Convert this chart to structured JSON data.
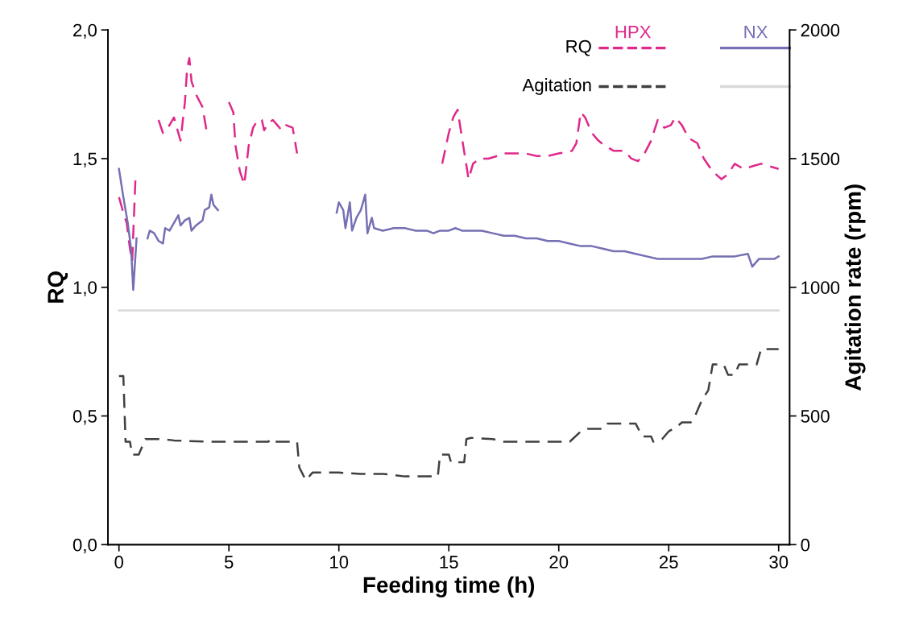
{
  "chart_data": {
    "type": "line",
    "xlabel": "Feeding time (h)",
    "ylabel": "RQ",
    "y2label": "Agitation rate (rpm)",
    "xlim": [
      -0.5,
      30.5
    ],
    "xticks": [
      0,
      5,
      10,
      15,
      20,
      25,
      30
    ],
    "ylim": [
      0,
      2
    ],
    "yticks": [
      {
        "value": 0,
        "label": "0,0"
      },
      {
        "value": 0.5,
        "label": "0,5"
      },
      {
        "value": 1,
        "label": "1,0"
      },
      {
        "value": 1.5,
        "label": "1,5"
      },
      {
        "value": 2,
        "label": "2,0"
      }
    ],
    "y2lim": [
      0,
      2000
    ],
    "y2ticks": [
      0,
      500,
      1000,
      1500,
      2000
    ],
    "legend": "top right",
    "grid": false,
    "marker": "none",
    "annotations": [
      "RQ",
      "Agitation"
    ],
    "series": [
      {
        "name": "HPX",
        "color": "#e0288a",
        "line_style": "dashed",
        "x": [
          0,
          0.2,
          0.35,
          0.5,
          0.6,
          0.75,
          0.76,
          1.8,
          2.0,
          2.3,
          2.5,
          2.8,
          3.0,
          3.1,
          3.2,
          3.3,
          3.5,
          3.8,
          4.0,
          4.5,
          5.0,
          5.2,
          5.3,
          5.5,
          5.7,
          5.9,
          6.1,
          6.3,
          6.5,
          6.6,
          6.8,
          7.0,
          7.2,
          7.4,
          7.6,
          7.9,
          8.1,
          10,
          14.7,
          15.0,
          15.2,
          15.4,
          15.6,
          15.9,
          16.1,
          16.4,
          16.8,
          17.2,
          17.5,
          18,
          18.5,
          19,
          19.5,
          20,
          20.6,
          20.8,
          21.0,
          21.2,
          21.5,
          21.8,
          22.1,
          22.5,
          23.0,
          23.3,
          23.6,
          23.9,
          24.2,
          24.5,
          24.8,
          25.1,
          25.3,
          25.6,
          25.9,
          26.3,
          26.6,
          27.0,
          27.4,
          27.7,
          28.0,
          28.4,
          28.8,
          29.2,
          29.6,
          30
        ],
        "values": [
          1.35,
          1.29,
          1.25,
          1.15,
          1.1,
          1.42,
          null,
          1.65,
          1.6,
          1.63,
          1.66,
          1.57,
          1.72,
          1.85,
          1.89,
          1.8,
          1.75,
          1.7,
          1.6,
          null,
          1.72,
          1.68,
          1.55,
          1.45,
          1.4,
          1.55,
          1.62,
          1.65,
          1.65,
          1.61,
          1.64,
          1.65,
          1.63,
          1.61,
          1.63,
          1.62,
          1.52,
          null,
          1.48,
          1.6,
          1.66,
          1.69,
          1.58,
          1.42,
          1.48,
          1.5,
          1.5,
          1.51,
          1.52,
          1.52,
          1.52,
          1.51,
          1.51,
          1.52,
          1.53,
          1.56,
          1.68,
          1.66,
          1.6,
          1.57,
          1.55,
          1.53,
          1.53,
          1.5,
          1.49,
          1.52,
          1.57,
          1.65,
          1.62,
          1.63,
          1.66,
          1.63,
          1.58,
          1.56,
          1.5,
          1.45,
          1.42,
          1.44,
          1.48,
          1.46,
          1.47,
          1.48,
          1.47,
          1.46
        ]
      },
      {
        "name": "NX",
        "color": "#7570b3",
        "line_style": "solid",
        "x": [
          0,
          0.2,
          0.4,
          0.55,
          0.65,
          0.8,
          1.0,
          1.3,
          1.4,
          1.6,
          1.8,
          2.0,
          2.1,
          2.3,
          2.5,
          2.7,
          2.8,
          3.0,
          3.2,
          3.3,
          3.5,
          3.8,
          3.9,
          4.1,
          4.2,
          4.3,
          4.5,
          7,
          9.9,
          10.0,
          10.2,
          10.3,
          10.5,
          10.6,
          10.8,
          11.0,
          11.2,
          11.3,
          11.5,
          11.6,
          12,
          12.5,
          13,
          13.5,
          14,
          14.3,
          14.6,
          15,
          15.3,
          15.6,
          16,
          16.5,
          17,
          17.5,
          18,
          18.5,
          19,
          19.5,
          20,
          20.5,
          21,
          21.5,
          22,
          22.5,
          23,
          23.5,
          24,
          24.5,
          25,
          25.5,
          26,
          26.5,
          27,
          27.5,
          28,
          28.6,
          28.8,
          29.1,
          29.5,
          29.8,
          30
        ],
        "values": [
          1.46,
          1.35,
          1.25,
          1.15,
          0.99,
          1.19,
          null,
          1.19,
          1.22,
          1.21,
          1.18,
          1.17,
          1.23,
          1.22,
          1.25,
          1.28,
          1.24,
          1.26,
          1.27,
          1.22,
          1.24,
          1.26,
          1.3,
          1.31,
          1.36,
          1.32,
          1.3,
          null,
          1.29,
          1.33,
          1.3,
          1.23,
          1.33,
          1.22,
          1.27,
          1.3,
          1.36,
          1.21,
          1.27,
          1.23,
          1.22,
          1.23,
          1.23,
          1.22,
          1.22,
          1.21,
          1.22,
          1.22,
          1.23,
          1.22,
          1.22,
          1.22,
          1.21,
          1.2,
          1.2,
          1.19,
          1.19,
          1.18,
          1.18,
          1.17,
          1.16,
          1.16,
          1.15,
          1.14,
          1.14,
          1.13,
          1.12,
          1.11,
          1.11,
          1.11,
          1.11,
          1.11,
          1.12,
          1.12,
          1.12,
          1.13,
          1.08,
          1.11,
          1.11,
          1.11,
          1.12
        ]
      },
      {
        "color": "#404040",
        "line_style": "dashed",
        "axis": "y2",
        "x": [
          0,
          0.2,
          0.3,
          0.5,
          0.6,
          0.9,
          1.0,
          1.2,
          2,
          2.5,
          4,
          6,
          6.8,
          6.9,
          7,
          8.1,
          8.2,
          8.5,
          8.8,
          10,
          11,
          12,
          12.5,
          13,
          14.5,
          14.6,
          15,
          15.1,
          15.7,
          15.8,
          16,
          17,
          17.5,
          20.5,
          21,
          21.3,
          22,
          22.2,
          23.5,
          23.8,
          24.2,
          24.3,
          24.7,
          25,
          25.4,
          25.6,
          26,
          26.2,
          26.5,
          26.8,
          27,
          27.5,
          27.7,
          28,
          28.2,
          29,
          29.2,
          30
        ],
        "values": [
          655,
          655,
          400,
          400,
          350,
          350,
          370,
          410,
          410,
          405,
          400,
          400,
          400,
          410,
          400,
          400,
          300,
          250,
          280,
          280,
          275,
          275,
          270,
          265,
          265,
          350,
          350,
          320,
          320,
          410,
          415,
          410,
          400,
          400,
          440,
          450,
          450,
          470,
          470,
          420,
          420,
          400,
          410,
          440,
          460,
          475,
          475,
          500,
          560,
          600,
          700,
          700,
          660,
          660,
          700,
          700,
          760,
          760
        ]
      },
      {
        "color": "#d9d9d9",
        "line_style": "solid",
        "axis": "y2",
        "x": [
          0,
          30
        ],
        "values": [
          910,
          910
        ]
      }
    ]
  }
}
